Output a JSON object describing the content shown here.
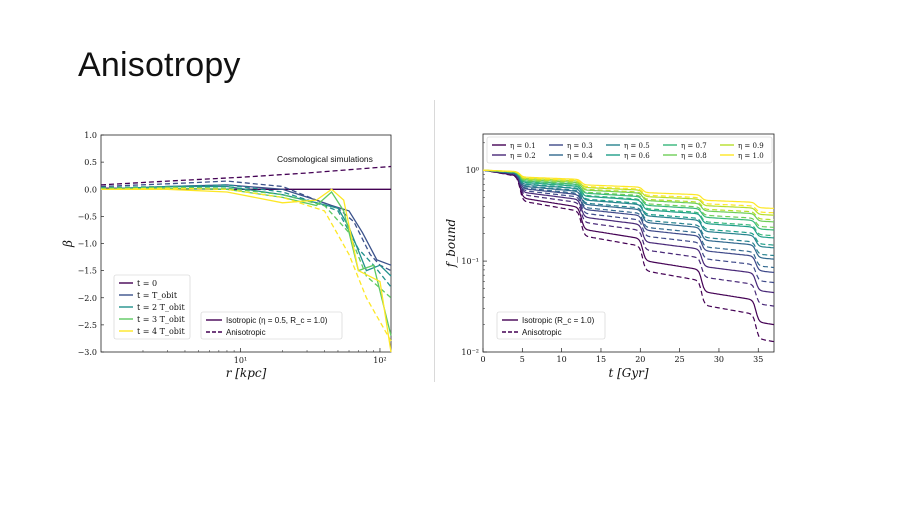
{
  "slide": {
    "title": "Anisotropy"
  },
  "chart_data": [
    {
      "type": "line",
      "xlabel": "r [kpc]",
      "ylabel": "β",
      "xscale": "log",
      "xlim": [
        1,
        120
      ],
      "ylim": [
        -3.0,
        1.0
      ],
      "x_tick_labels": [
        "10¹",
        "10²"
      ],
      "y_tick_labels": [
        "1.0",
        "0.5",
        "0.0",
        "−0.5",
        "−1.0",
        "−1.5",
        "−2.0",
        "−2.5",
        "−3.0"
      ],
      "annotation": "Cosmological simulations",
      "time_legend": [
        "t = 0",
        "t = T_obit",
        "t = 2 T_obit",
        "t = 3 T_obit",
        "t = 4 T_obit"
      ],
      "style_legend": [
        "Isotropic (η = 0.5, R_c = 1.0)",
        "Anisotropic"
      ],
      "series": [
        {
          "name": "t = 0",
          "style": "solid",
          "color": "#440154",
          "x": [
            1,
            3,
            10,
            30,
            60,
            120
          ],
          "y": [
            0.02,
            0.01,
            0.0,
            0.0,
            0.0,
            0.0
          ]
        },
        {
          "name": "t = 0",
          "style": "dashed",
          "color": "#440154",
          "x": [
            1,
            3,
            10,
            30,
            60,
            120
          ],
          "y": [
            0.08,
            0.15,
            0.22,
            0.3,
            0.36,
            0.42
          ]
        },
        {
          "name": "t = T_obit",
          "style": "solid",
          "color": "#3b528b",
          "x": [
            1,
            3,
            8,
            20,
            35,
            45,
            60,
            75,
            95,
            120
          ],
          "y": [
            0.0,
            0.05,
            0.08,
            0.0,
            -0.2,
            -0.3,
            -0.4,
            -0.8,
            -1.3,
            -1.4
          ]
        },
        {
          "name": "t = T_obit",
          "style": "dashed",
          "color": "#3b528b",
          "x": [
            1,
            3,
            8,
            20,
            35,
            50,
            65,
            85,
            100,
            120
          ],
          "y": [
            0.05,
            0.1,
            0.15,
            0.05,
            -0.2,
            -0.35,
            -0.6,
            -1.2,
            -1.4,
            -1.5
          ]
        },
        {
          "name": "t = 2 T_obit",
          "style": "solid",
          "color": "#21918c",
          "x": [
            1,
            3,
            8,
            20,
            35,
            50,
            60,
            80,
            100,
            120
          ],
          "y": [
            0.0,
            0.05,
            0.05,
            -0.1,
            -0.25,
            -0.35,
            -0.7,
            -1.5,
            -1.4,
            -1.6
          ]
        },
        {
          "name": "t = 2 T_obit",
          "style": "dashed",
          "color": "#21918c",
          "x": [
            1,
            3,
            8,
            20,
            35,
            50,
            70,
            90,
            120
          ],
          "y": [
            0.03,
            0.05,
            0.08,
            -0.05,
            -0.25,
            -0.4,
            -1.1,
            -1.4,
            -1.8
          ]
        },
        {
          "name": "t = 3 T_obit",
          "style": "solid",
          "color": "#5ec962",
          "x": [
            1,
            3,
            8,
            20,
            35,
            45,
            55,
            70,
            90,
            120
          ],
          "y": [
            0.0,
            0.02,
            0.0,
            -0.15,
            -0.3,
            -0.05,
            -0.4,
            -1.5,
            -1.4,
            -2.7
          ]
        },
        {
          "name": "t = 3 T_obit",
          "style": "dashed",
          "color": "#5ec962",
          "x": [
            1,
            3,
            8,
            20,
            40,
            60,
            80,
            120
          ],
          "y": [
            0.02,
            0.04,
            0.02,
            -0.1,
            -0.3,
            -0.8,
            -1.6,
            -2.0
          ]
        },
        {
          "name": "t = 4 T_obit",
          "style": "solid",
          "color": "#fde725",
          "x": [
            1,
            3,
            8,
            20,
            35,
            45,
            55,
            70,
            100,
            120
          ],
          "y": [
            0.0,
            0.0,
            -0.05,
            -0.25,
            -0.2,
            0.0,
            -0.2,
            -1.5,
            -1.7,
            -3.0
          ]
        },
        {
          "name": "t = 4 T_obit",
          "style": "dashed",
          "color": "#fde725",
          "x": [
            1,
            3,
            8,
            20,
            40,
            60,
            80,
            120
          ],
          "y": [
            0.0,
            0.02,
            0.0,
            -0.15,
            -0.4,
            -1.2,
            -2.0,
            -2.8
          ]
        }
      ]
    },
    {
      "type": "line",
      "xlabel": "t [Gyr]",
      "ylabel": "f_bound",
      "yscale": "log",
      "xlim": [
        0,
        37
      ],
      "ylim": [
        0.01,
        2.5
      ],
      "x_tick_labels": [
        "0",
        "5",
        "10",
        "15",
        "20",
        "25",
        "30",
        "35"
      ],
      "y_tick_labels": [
        "10⁰",
        "10⁻¹",
        "10⁻²"
      ],
      "eta_legend": [
        "η = 0.1",
        "η = 0.2",
        "η = 0.3",
        "η = 0.4",
        "η = 0.5",
        "η = 0.6",
        "η = 0.7",
        "η = 0.8",
        "η = 0.9",
        "η = 1.0"
      ],
      "style_legend": [
        "Isotropic (R_c = 1.0)",
        "Anisotropic"
      ],
      "series": [
        {
          "name": "η = 0.1",
          "style": "solid",
          "color": "#440154",
          "final": 0.02
        },
        {
          "name": "η = 0.1",
          "style": "dashed",
          "color": "#440154",
          "final": 0.013
        },
        {
          "name": "η = 0.2",
          "style": "solid",
          "color": "#482878",
          "final": 0.045
        },
        {
          "name": "η = 0.2",
          "style": "dashed",
          "color": "#482878",
          "final": 0.032
        },
        {
          "name": "η = 0.3",
          "style": "solid",
          "color": "#3e4989",
          "final": 0.075
        },
        {
          "name": "η = 0.3",
          "style": "dashed",
          "color": "#3e4989",
          "final": 0.058
        },
        {
          "name": "η = 0.4",
          "style": "solid",
          "color": "#31688e",
          "final": 0.105
        },
        {
          "name": "η = 0.4",
          "style": "dashed",
          "color": "#31688e",
          "final": 0.085
        },
        {
          "name": "η = 0.5",
          "style": "solid",
          "color": "#26828e",
          "final": 0.14
        },
        {
          "name": "η = 0.5",
          "style": "dashed",
          "color": "#26828e",
          "final": 0.115
        },
        {
          "name": "η = 0.6",
          "style": "solid",
          "color": "#1f9e89",
          "final": 0.18
        },
        {
          "name": "η = 0.6",
          "style": "dashed",
          "color": "#1f9e89",
          "final": 0.15
        },
        {
          "name": "η = 0.7",
          "style": "solid",
          "color": "#35b779",
          "final": 0.22
        },
        {
          "name": "η = 0.7",
          "style": "dashed",
          "color": "#35b779",
          "final": 0.19
        },
        {
          "name": "η = 0.8",
          "style": "solid",
          "color": "#6ece58",
          "final": 0.27
        },
        {
          "name": "η = 0.8",
          "style": "dashed",
          "color": "#6ece58",
          "final": 0.235
        },
        {
          "name": "η = 0.9",
          "style": "solid",
          "color": "#b5de2b",
          "final": 0.32
        },
        {
          "name": "η = 0.9",
          "style": "dashed",
          "color": "#b5de2b",
          "final": 0.285
        },
        {
          "name": "η = 1.0",
          "style": "solid",
          "color": "#fde725",
          "final": 0.38
        },
        {
          "name": "η = 1.0",
          "style": "dashed",
          "color": "#fde725",
          "final": 0.34
        }
      ]
    }
  ]
}
